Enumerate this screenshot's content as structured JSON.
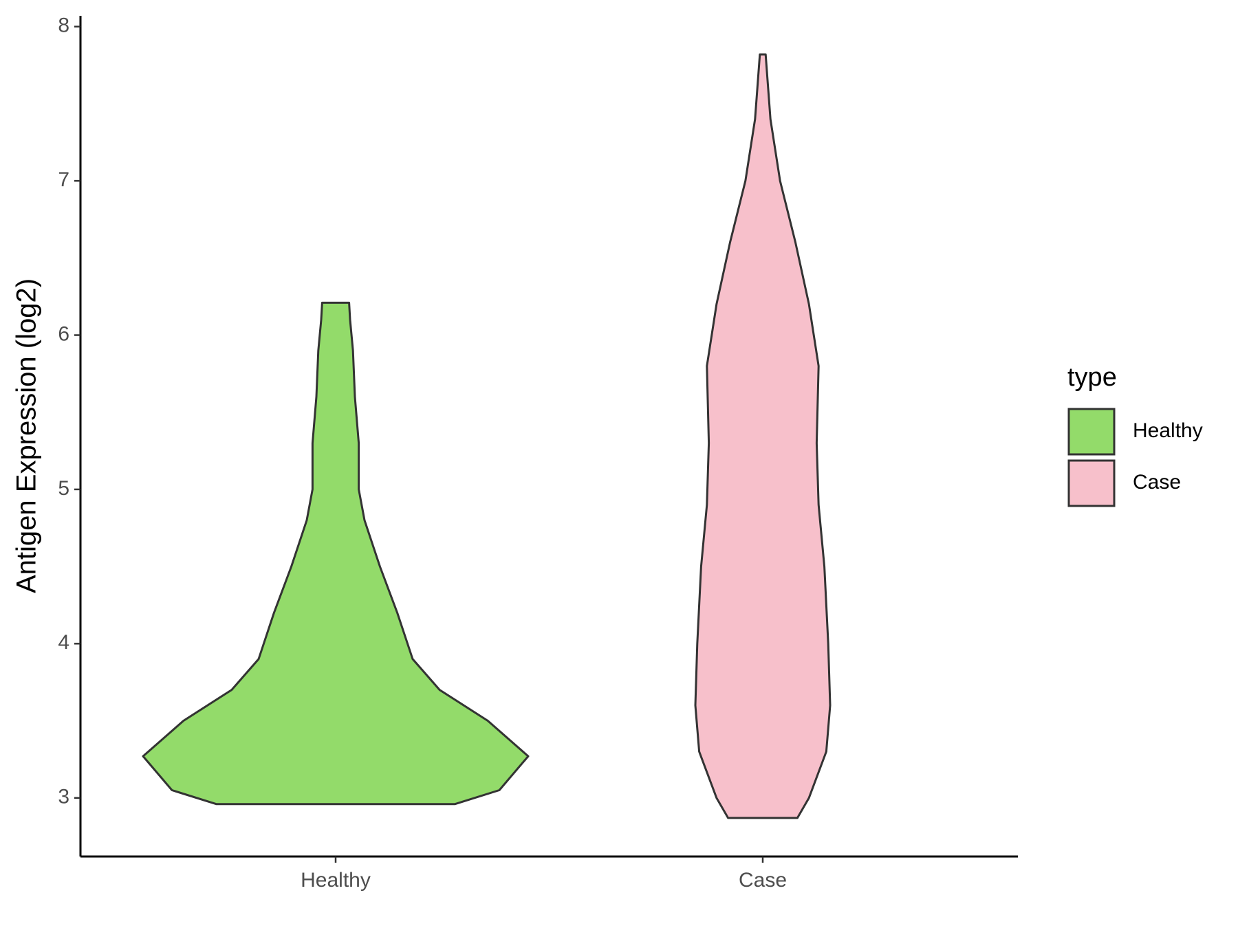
{
  "chart_data": {
    "type": "violin",
    "ylabel": "Antigen Expression (log2)",
    "categories": [
      "Healthy",
      "Case"
    ],
    "ylim": [
      2.62,
      8.07
    ],
    "yticks": [
      3,
      4,
      5,
      6,
      7,
      8
    ],
    "legend_title": "type",
    "legend": "right",
    "series": [
      {
        "name": "Healthy",
        "color": "#93db6a",
        "values": [
          2.96,
          3.05,
          3.27,
          3.5,
          3.7,
          3.9,
          4.2,
          4.5,
          4.8,
          5.0,
          5.3,
          5.6,
          5.9,
          6.1,
          6.21
        ],
        "widths": [
          0.62,
          0.85,
          1.0,
          0.79,
          0.54,
          0.4,
          0.32,
          0.23,
          0.15,
          0.12,
          0.12,
          0.1,
          0.09,
          0.075,
          0.07
        ]
      },
      {
        "name": "Case",
        "color": "#f7c0cb",
        "values": [
          2.87,
          3.0,
          3.3,
          3.6,
          4.0,
          4.5,
          4.9,
          5.3,
          5.8,
          6.2,
          6.6,
          7.0,
          7.4,
          7.82
        ],
        "widths": [
          0.18,
          0.24,
          0.33,
          0.35,
          0.34,
          0.32,
          0.29,
          0.28,
          0.29,
          0.24,
          0.17,
          0.09,
          0.04,
          0.015
        ]
      }
    ]
  }
}
